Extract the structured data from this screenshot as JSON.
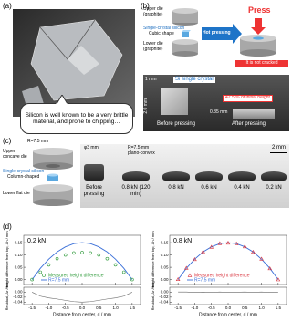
{
  "panel_labels": [
    "(a)",
    "(b)",
    "(c)",
    "(d)"
  ],
  "panel_a": {
    "bubble": "Silicon is well known to be a very brittle material, and prone to chipping…"
  },
  "panel_b": {
    "upper_die": "Upper die (graphite)",
    "sample": "Single-crystal silicon",
    "shape": "Cubic shape",
    "lower_die": "Lower die (graphite)",
    "process": "Hot pressing",
    "press": "Press",
    "not_cracked": "It is not cracked",
    "scale": "1 mm",
    "photo_label": "Si single crystal",
    "initial_height": "2.0 mm",
    "final_height": "0.85 mm",
    "ratio": "42.5 % of initial height",
    "before": "Before pressing",
    "after": "After pressing"
  },
  "panel_c": {
    "radius": "R=7.5 mm",
    "upper_die": "Upper concave die",
    "sample": "Single-crystal silicon",
    "shape": "Column-shaped",
    "lower_die": "Lower flat die",
    "diameter": "φ3 mm",
    "lens_radius": "R=7.5 mm",
    "lens_shape": "plano-convex",
    "scale": "2 mm",
    "samples": [
      "Before pressing",
      "0.8 kN (120 min)",
      "0.8 kN",
      "0.6 kN",
      "0.4 kN",
      "0.2 kN"
    ]
  },
  "chart_data": [
    {
      "type": "scatter",
      "label": "0.2 kN",
      "marker": "circle",
      "x": [
        -1.5,
        -1.25,
        -1.0,
        -0.75,
        -0.5,
        -0.25,
        0,
        0.25,
        0.5,
        0.75,
        1.0,
        1.25,
        1.5
      ],
      "series": [
        {
          "name": "Measured height difference",
          "color": "#2e9a3a",
          "values": [
            0.0,
            0.03,
            0.06,
            0.085,
            0.1,
            0.108,
            0.11,
            0.108,
            0.1,
            0.085,
            0.06,
            0.03,
            0.0
          ]
        },
        {
          "name": "R=7.5 mm",
          "color": "#3a6fd8",
          "values": [
            0.0,
            0.046,
            0.083,
            0.1125,
            0.133,
            0.146,
            0.15,
            0.146,
            0.133,
            0.1125,
            0.083,
            0.046,
            0.0
          ]
        }
      ],
      "xlim": [
        -1.75,
        1.75
      ],
      "xticks": [
        -1.5,
        {
          "value": -1,
          "label": "-1.0"
        },
        -0.5,
        {
          "value": 0,
          "label": "0.0"
        },
        0.5,
        {
          "value": 1,
          "label": "1.0"
        },
        1.5
      ],
      "ylim": [
        -0.02,
        0.18
      ],
      "yticks": [
        {
          "value": 0,
          "label": "0.00"
        },
        0.05,
        {
          "value": 0.1,
          "label": "0.10"
        },
        0.15
      ],
      "xlabel": "Distance from center, d / mm",
      "ylabel": "Height difference from top, Δh / mm",
      "residual": {
        "ylabel": "Residual, Δr / mm",
        "color": "#666666",
        "values": [
          0.0,
          -0.016,
          -0.023,
          -0.0275,
          -0.033,
          -0.038,
          -0.04,
          -0.038,
          -0.033,
          -0.0275,
          -0.023,
          -0.016,
          0.0
        ],
        "ylim": [
          -0.05,
          0.02
        ],
        "yticks": [
          -0.04,
          -0.02,
          {
            "value": 0,
            "label": "0.00"
          }
        ]
      }
    },
    {
      "type": "scatter",
      "label": "0.8 kN",
      "marker": "triangle",
      "x": [
        -1.5,
        -1.25,
        -1.0,
        -0.75,
        -0.5,
        -0.25,
        0,
        0.25,
        0.5,
        0.75,
        1.0,
        1.25,
        1.5
      ],
      "series": [
        {
          "name": "Measured height difference",
          "color": "#d8323c",
          "values": [
            0.001,
            0.047,
            0.082,
            0.113,
            0.132,
            0.147,
            0.149,
            0.146,
            0.134,
            0.112,
            0.084,
            0.045,
            0.0
          ]
        },
        {
          "name": "R=7.5 mm",
          "color": "#3a6fd8",
          "values": [
            0.0,
            0.046,
            0.083,
            0.1125,
            0.133,
            0.146,
            0.15,
            0.146,
            0.133,
            0.1125,
            0.083,
            0.046,
            0.0
          ]
        }
      ],
      "xlim": [
        -1.75,
        1.75
      ],
      "xticks": [
        -1.5,
        {
          "value": -1,
          "label": "-1.0"
        },
        -0.5,
        {
          "value": 0,
          "label": "0.0"
        },
        0.5,
        {
          "value": 1,
          "label": "1.0"
        },
        1.5
      ],
      "ylim": [
        -0.02,
        0.18
      ],
      "yticks": [
        {
          "value": 0,
          "label": "0.00"
        },
        0.05,
        {
          "value": 0.1,
          "label": "0.10"
        },
        0.15
      ],
      "xlabel": "Distance from center, d / mm",
      "ylabel": "Height difference from top, Δh / mm",
      "residual": {
        "ylabel": "Residual, Δr / mm",
        "color": "#666666",
        "values": [
          0.001,
          0.001,
          -0.001,
          0.0005,
          -0.001,
          0.001,
          -0.001,
          0.0,
          0.001,
          -0.0005,
          0.001,
          -0.001,
          0.0
        ],
        "ylim": [
          -0.05,
          0.02
        ],
        "yticks": [
          -0.04,
          -0.02,
          {
            "value": 0,
            "label": "0.00"
          }
        ]
      }
    }
  ]
}
